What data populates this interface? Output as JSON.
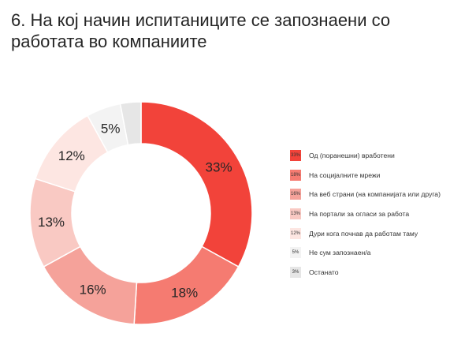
{
  "title": "6. На кој начин испитаниците се запознаени со работата во компаниите",
  "chart_data": {
    "type": "pie",
    "categories": [
      "Од (поранешни) вработени",
      "На социјалните мрежи",
      "На веб страни (на компанијата или друга)",
      "На портали за огласи за работа",
      "Дури кога почнав да работам таму",
      "Не сум запознаен/а",
      "Останато"
    ],
    "values": [
      33,
      18,
      16,
      13,
      12,
      5,
      3
    ],
    "value_labels": [
      "33%",
      "18%",
      "16%",
      "13%",
      "12%",
      "5%",
      "3%"
    ],
    "colors": [
      "#f2433a",
      "#f57b71",
      "#f5a29a",
      "#f9c9c3",
      "#fde6e2",
      "#f3f3f3",
      "#e6e6e6"
    ],
    "label_colors": [
      "#262626",
      "#262626",
      "#262626",
      "#262626",
      "#262626",
      "#262626",
      "#262626"
    ],
    "donut": true,
    "legend_position": "right"
  }
}
